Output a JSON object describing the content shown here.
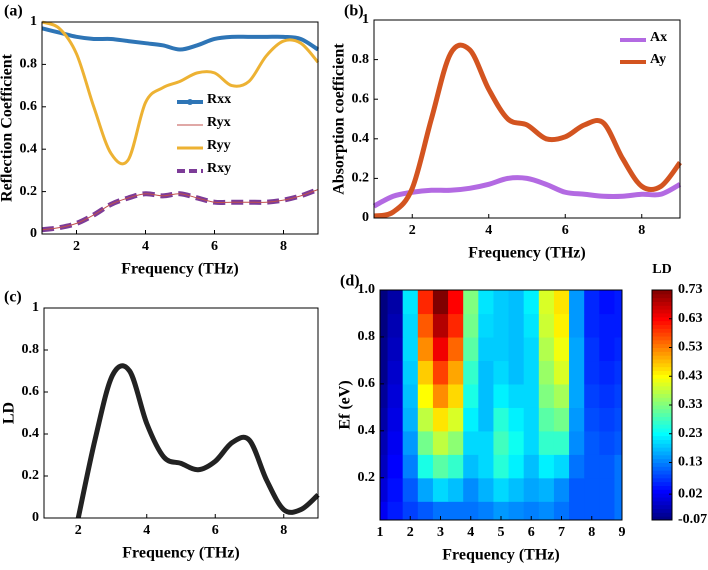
{
  "chart_data": [
    {
      "type": "line",
      "label": "(a)",
      "xlabel": "Frequency (THz)",
      "ylabel": "Reflection Coefficient",
      "xlim": [
        1,
        9
      ],
      "ylim": [
        0,
        1
      ],
      "xticks": [
        2,
        4,
        6,
        8
      ],
      "yticks": [
        0,
        0.2,
        0.4,
        0.6,
        0.8,
        1
      ],
      "legend": "center",
      "x": [
        1,
        1.5,
        2,
        2.5,
        3,
        3.5,
        4,
        4.5,
        5,
        5.5,
        6,
        6.5,
        7,
        7.5,
        8,
        8.5,
        9
      ],
      "series": [
        {
          "name": "Rxx",
          "color": "#2e75b6",
          "values": [
            0.97,
            0.95,
            0.93,
            0.92,
            0.92,
            0.91,
            0.9,
            0.89,
            0.87,
            0.89,
            0.92,
            0.93,
            0.93,
            0.93,
            0.93,
            0.92,
            0.87
          ]
        },
        {
          "name": "Ryx",
          "color": "#c0504d",
          "values": [
            0.02,
            0.03,
            0.05,
            0.09,
            0.14,
            0.17,
            0.19,
            0.18,
            0.19,
            0.17,
            0.15,
            0.15,
            0.15,
            0.15,
            0.16,
            0.18,
            0.21
          ]
        },
        {
          "name": "Ryy",
          "color": "#edb233",
          "values": [
            1,
            0.97,
            0.85,
            0.6,
            0.38,
            0.35,
            0.62,
            0.69,
            0.72,
            0.76,
            0.76,
            0.7,
            0.72,
            0.84,
            0.91,
            0.9,
            0.81
          ]
        },
        {
          "name": "Rxy",
          "color": "#7d3c98",
          "style": "dashed",
          "values": [
            0.02,
            0.03,
            0.05,
            0.09,
            0.14,
            0.17,
            0.19,
            0.18,
            0.19,
            0.17,
            0.15,
            0.15,
            0.15,
            0.15,
            0.16,
            0.18,
            0.21
          ]
        }
      ]
    },
    {
      "type": "line",
      "label": "(b)",
      "xlabel": "Frequency (THz)",
      "ylabel": "Absorption coefficient",
      "xlim": [
        1,
        9
      ],
      "ylim": [
        0,
        1
      ],
      "xticks": [
        2,
        4,
        6,
        8
      ],
      "yticks": [
        0,
        0.2,
        0.4,
        0.6,
        0.8,
        1
      ],
      "legend": "upper-right",
      "x": [
        1,
        1.5,
        2,
        2.5,
        3,
        3.5,
        4,
        4.5,
        5,
        5.5,
        6,
        6.5,
        7,
        7.5,
        8,
        8.5,
        9
      ],
      "series": [
        {
          "name": "Ax",
          "color": "#b36ae2",
          "values": [
            0.06,
            0.11,
            0.13,
            0.14,
            0.14,
            0.15,
            0.17,
            0.2,
            0.2,
            0.17,
            0.13,
            0.12,
            0.11,
            0.11,
            0.12,
            0.12,
            0.17
          ]
        },
        {
          "name": "Ay",
          "color": "#d35420",
          "values": [
            0.01,
            0.03,
            0.15,
            0.5,
            0.83,
            0.85,
            0.65,
            0.5,
            0.47,
            0.4,
            0.41,
            0.47,
            0.48,
            0.3,
            0.16,
            0.16,
            0.28
          ]
        }
      ]
    },
    {
      "type": "line",
      "label": "(c)",
      "xlabel": "Frequency (THz)",
      "ylabel": "LD",
      "xlim": [
        1,
        9
      ],
      "ylim": [
        0,
        1
      ],
      "xticks": [
        2,
        4,
        6,
        8
      ],
      "yticks": [
        0,
        0.2,
        0.4,
        0.6,
        0.8,
        1
      ],
      "x": [
        1,
        1.5,
        2,
        2.5,
        3,
        3.5,
        4,
        4.5,
        5,
        5.5,
        6,
        6.5,
        7,
        7.5,
        8,
        8.5,
        9
      ],
      "series": [
        {
          "color": "#222222",
          "values": [
            null,
            null,
            0,
            0.38,
            0.68,
            0.7,
            0.45,
            0.29,
            0.26,
            0.23,
            0.27,
            0.36,
            0.37,
            0.18,
            0.04,
            0.04,
            0.11
          ]
        }
      ]
    },
    {
      "type": "heatmap",
      "label": "(d)",
      "xlabel": "Frequency (THz)",
      "ylabel": "Ef (eV)",
      "colorbar_label": "LD",
      "xlim": [
        1,
        9
      ],
      "ylim": [
        0.02,
        1
      ],
      "xticks": [
        1,
        2,
        3,
        4,
        5,
        6,
        7,
        8,
        9
      ],
      "yticks": [
        0.2,
        0.4,
        0.6,
        0.8,
        {
          "value": 1,
          "label": "1.0"
        }
      ],
      "zlim": [
        -0.07,
        0.73
      ],
      "zticks": [
        0.73,
        0.63,
        0.53,
        0.43,
        0.33,
        0.23,
        0.13,
        0.02,
        -0.07
      ],
      "x": [
        1,
        1.5,
        2,
        2.5,
        3,
        3.5,
        4,
        4.5,
        5,
        5.5,
        6,
        6.5,
        7,
        7.5,
        8,
        8.5,
        9
      ],
      "y": [
        0.05,
        0.15,
        0.25,
        0.35,
        0.45,
        0.55,
        0.65,
        0.75,
        0.85,
        0.95
      ],
      "z": [
        [
          0.02,
          0.05,
          0.08,
          0.1,
          0.12,
          0.12,
          0.12,
          0.13,
          0.15,
          0.14,
          0.13,
          0.14,
          0.12,
          0.1,
          0.1,
          0.1,
          0.12
        ],
        [
          0,
          0.04,
          0.1,
          0.16,
          0.2,
          0.18,
          0.14,
          0.17,
          0.2,
          0.18,
          0.16,
          0.17,
          0.14,
          0.1,
          0.1,
          0.1,
          0.12
        ],
        [
          -0.02,
          0.03,
          0.13,
          0.25,
          0.3,
          0.27,
          0.18,
          0.2,
          0.26,
          0.22,
          0.18,
          0.22,
          0.2,
          0.12,
          0.1,
          0.1,
          0.12
        ],
        [
          -0.03,
          0.02,
          0.15,
          0.32,
          0.38,
          0.34,
          0.2,
          0.2,
          0.28,
          0.24,
          0.2,
          0.27,
          0.27,
          0.14,
          0.1,
          0.09,
          0.1
        ],
        [
          -0.04,
          0.01,
          0.17,
          0.38,
          0.45,
          0.4,
          0.22,
          0.18,
          0.26,
          0.22,
          0.2,
          0.3,
          0.32,
          0.15,
          0.09,
          0.08,
          0.09
        ],
        [
          -0.05,
          0,
          0.18,
          0.43,
          0.52,
          0.46,
          0.25,
          0.18,
          0.22,
          0.2,
          0.2,
          0.33,
          0.36,
          0.16,
          0.08,
          0.07,
          0.08
        ],
        [
          -0.06,
          -0.01,
          0.19,
          0.47,
          0.58,
          0.5,
          0.27,
          0.18,
          0.2,
          0.18,
          0.2,
          0.35,
          0.4,
          0.16,
          0.07,
          0.06,
          0.07
        ],
        [
          -0.06,
          -0.02,
          0.2,
          0.52,
          0.64,
          0.55,
          0.3,
          0.19,
          0.19,
          0.18,
          0.2,
          0.37,
          0.42,
          0.16,
          0.07,
          0.05,
          0.06
        ],
        [
          -0.07,
          -0.03,
          0.2,
          0.56,
          0.69,
          0.6,
          0.32,
          0.2,
          0.19,
          0.18,
          0.21,
          0.39,
          0.44,
          0.15,
          0.06,
          0.05,
          0.05
        ],
        [
          -0.07,
          -0.04,
          0.21,
          0.6,
          0.73,
          0.63,
          0.33,
          0.21,
          0.19,
          0.18,
          0.22,
          0.4,
          0.45,
          0.15,
          0.06,
          0.04,
          0.05
        ]
      ]
    }
  ]
}
